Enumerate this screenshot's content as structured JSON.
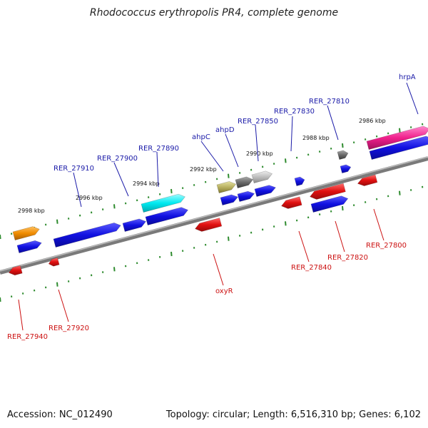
{
  "title": "Rhodococcus erythropolis PR4, complete genome",
  "footer": {
    "accession": "Accession: NC_012490",
    "topology": "Topology: circular; Length: 6,516,310 bp; Genes: 6,102"
  },
  "colors": {
    "forward": "#1010e0",
    "reverse": "#e01010",
    "backbone": "#888888",
    "ticks": "#2e8b2e",
    "label_forward": "#1a1aa8",
    "label_reverse": "#cc1111"
  },
  "scale_labels": [
    "2998 kbp",
    "2996 kbp",
    "2994 kbp",
    "2992 kbp",
    "2990 kbp",
    "2988 kbp",
    "2986 kbp"
  ],
  "forward_gene_labels": [
    "RER_27910",
    "RER_27900",
    "RER_27890",
    "ahpC",
    "ahpD",
    "RER_27850",
    "RER_27830",
    "RER_27810",
    "hrpA"
  ],
  "reverse_gene_labels": [
    "RER_27940",
    "RER_27920",
    "oxyR",
    "RER_27840",
    "RER_27820",
    "RER_27800"
  ]
}
